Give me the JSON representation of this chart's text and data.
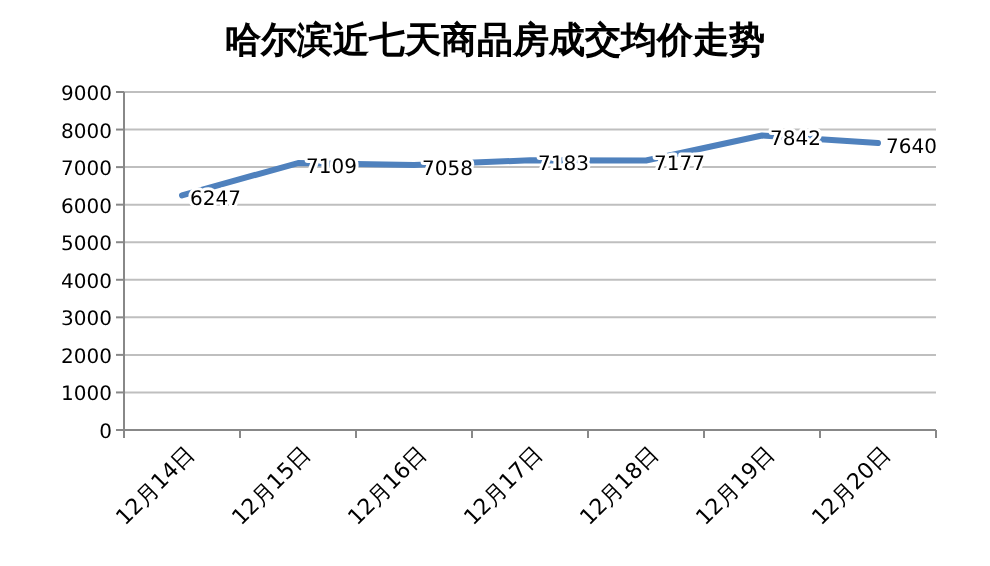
{
  "chart_data": {
    "type": "line",
    "title": "哈尔滨近七天商品房成交均价走势",
    "categories": [
      "12月14日",
      "12月15日",
      "12月16日",
      "12月17日",
      "12月18日",
      "12月19日",
      "12月20日"
    ],
    "series": [
      {
        "color": "#4f81bd",
        "values": [
          6247,
          7109,
          7058,
          7183,
          7177,
          7842,
          7640
        ]
      }
    ],
    "ylim": [
      0,
      9000
    ],
    "yticks": [
      0,
      1000,
      2000,
      3000,
      4000,
      5000,
      6000,
      7000,
      8000,
      9000
    ],
    "grid": "y",
    "data_labels": true,
    "marker": "none",
    "line_style": "solid"
  }
}
